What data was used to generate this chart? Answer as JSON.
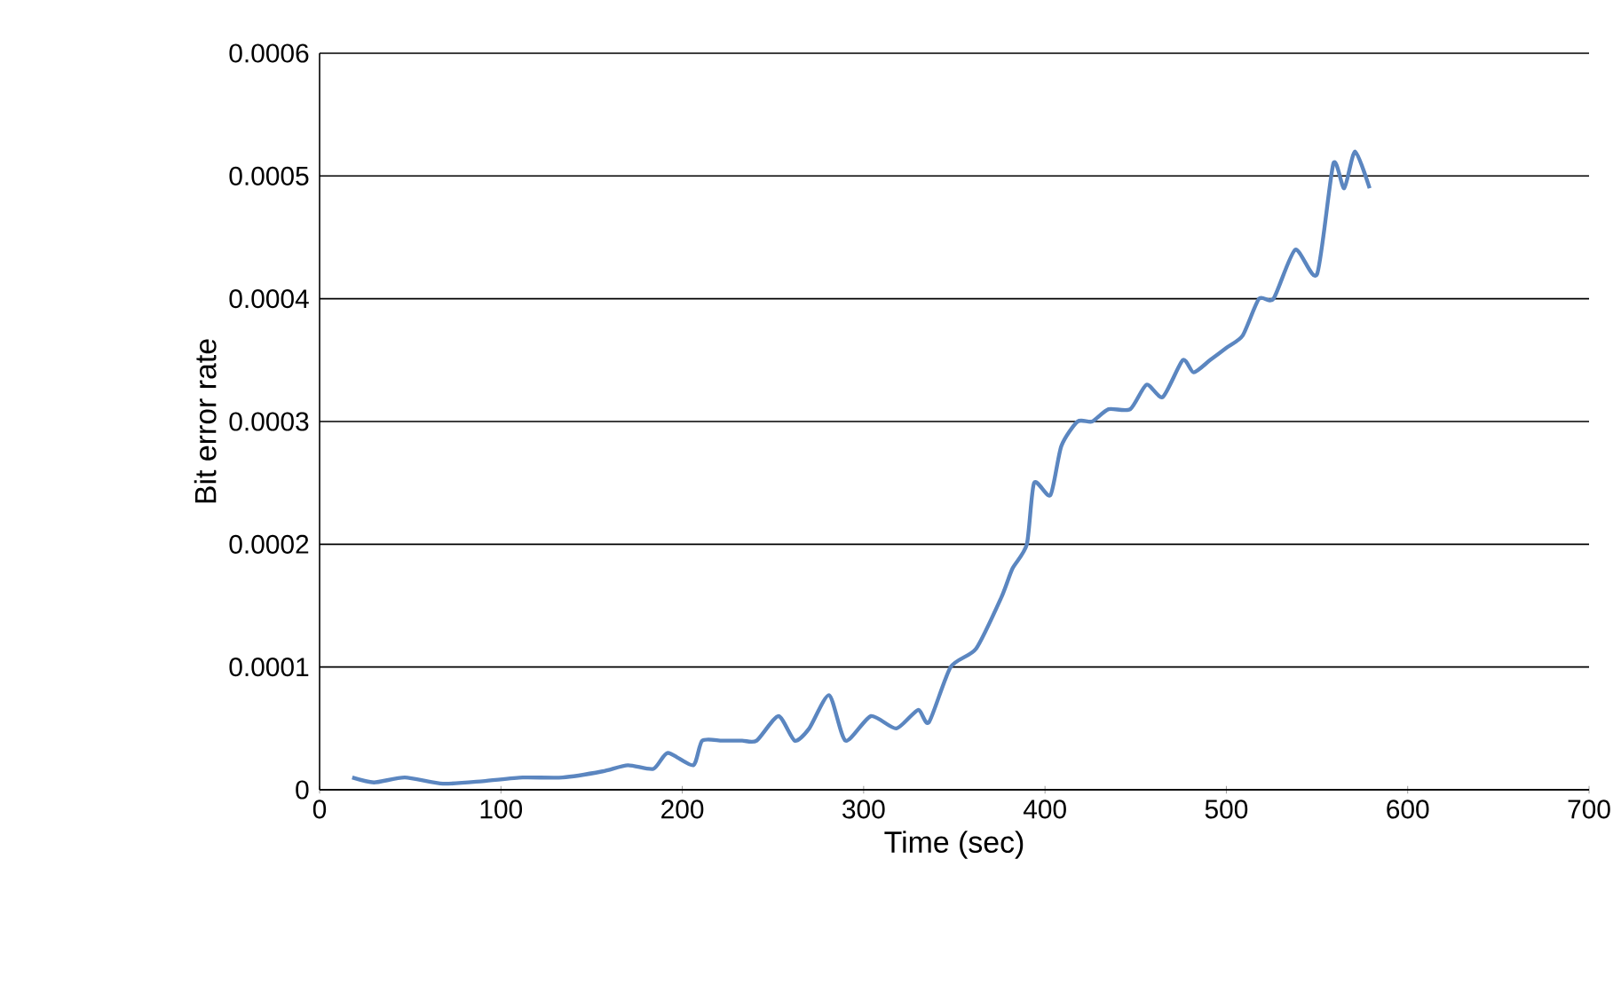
{
  "chart_data": {
    "type": "line",
    "xlabel": "Time (sec)",
    "ylabel": "Bit  error rate",
    "color": "#5b86c0",
    "grid": "y",
    "marker": "none",
    "line_style": "solid",
    "xlim": [
      0,
      700
    ],
    "ylim": [
      0,
      0.0006
    ],
    "xticks": [
      0,
      100,
      200,
      300,
      400,
      500,
      600,
      700
    ],
    "yticks": [
      0,
      0.0001,
      0.0002,
      0.0003,
      0.0004,
      0.0005,
      0.0006
    ],
    "x": [
      18,
      30,
      47,
      68,
      90,
      112,
      134,
      156,
      170,
      184,
      192,
      206,
      211,
      222,
      233,
      241,
      253,
      262,
      270,
      281,
      290,
      304,
      318,
      330,
      336,
      348,
      362,
      376,
      382,
      390,
      394,
      403,
      409,
      418,
      426,
      435,
      447,
      456,
      465,
      476,
      482,
      491,
      500,
      509,
      518,
      526,
      538,
      550,
      559,
      565,
      571,
      579
    ],
    "values": [
      1e-05,
      6e-06,
      1e-05,
      5e-06,
      7e-06,
      1e-05,
      1e-05,
      1.5e-05,
      2e-05,
      1.7e-05,
      3e-05,
      2e-05,
      4e-05,
      4e-05,
      4e-05,
      4e-05,
      6e-05,
      4e-05,
      5e-05,
      7.7e-05,
      4e-05,
      6e-05,
      5e-05,
      6.5e-05,
      5.5e-05,
      0.0001,
      0.000115,
      0.000157,
      0.00018,
      0.0002,
      0.00025,
      0.00024,
      0.00028,
      0.0003,
      0.0003,
      0.00031,
      0.00031,
      0.00033,
      0.00032,
      0.00035,
      0.00034,
      0.00035,
      0.00036,
      0.00037,
      0.0004,
      0.0004,
      0.00044,
      0.00042,
      0.00051,
      0.00049,
      0.00052,
      0.00049
    ]
  }
}
